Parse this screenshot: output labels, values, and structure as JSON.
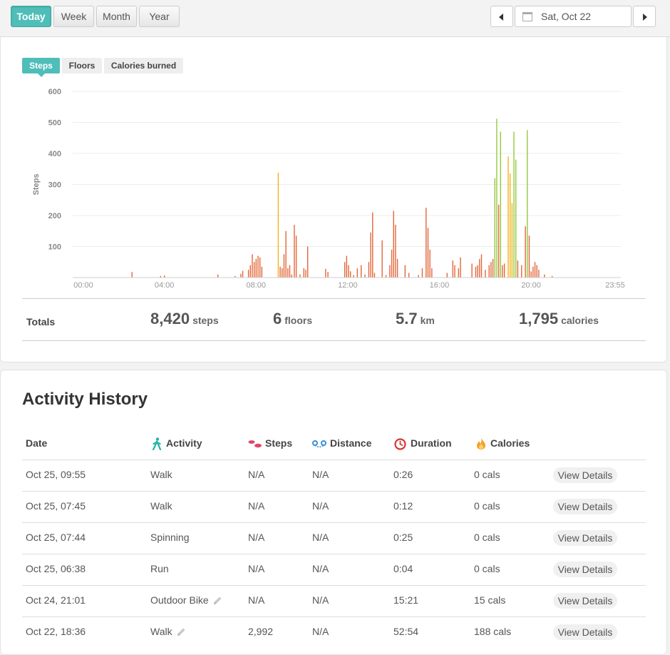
{
  "range_tabs": [
    {
      "label": "Today",
      "active": true
    },
    {
      "label": "Week",
      "active": false
    },
    {
      "label": "Month",
      "active": false
    },
    {
      "label": "Year",
      "active": false
    }
  ],
  "date_nav": {
    "date": "Sat, Oct 22",
    "calendar_icon": "calendar-icon",
    "prev_icon": "caret-left-icon",
    "next_icon": "caret-right-icon"
  },
  "metric_tabs": [
    {
      "label": "Steps",
      "active": true
    },
    {
      "label": "Floors",
      "active": false
    },
    {
      "label": "Calories burned",
      "active": false
    }
  ],
  "chart_data": {
    "type": "bar",
    "ylabel": "Steps",
    "yticks": [
      "100",
      "200",
      "300",
      "400",
      "500",
      "600"
    ],
    "ylim": [
      0,
      600
    ],
    "xticks": [
      "00:00",
      "04:00",
      "08:00",
      "12:00",
      "16:00",
      "20:00",
      "23:55"
    ],
    "x_unit": "minutes since 00:00",
    "xlim": [
      0,
      1435
    ],
    "grid": true,
    "colors": {
      "sedentary": "#e2673a",
      "light": "#f3b31a",
      "active": "#95c83d"
    },
    "bars": [
      {
        "t": 155,
        "v": 18,
        "level": "sedentary"
      },
      {
        "t": 230,
        "v": 5,
        "level": "sedentary"
      },
      {
        "t": 240,
        "v": 7,
        "level": "sedentary"
      },
      {
        "t": 380,
        "v": 10,
        "level": "sedentary"
      },
      {
        "t": 425,
        "v": 5,
        "level": "sedentary"
      },
      {
        "t": 440,
        "v": 12,
        "level": "sedentary"
      },
      {
        "t": 445,
        "v": 22,
        "level": "sedentary"
      },
      {
        "t": 460,
        "v": 25,
        "level": "sedentary"
      },
      {
        "t": 465,
        "v": 40,
        "level": "sedentary"
      },
      {
        "t": 470,
        "v": 75,
        "level": "sedentary"
      },
      {
        "t": 475,
        "v": 50,
        "level": "sedentary"
      },
      {
        "t": 480,
        "v": 60,
        "level": "sedentary"
      },
      {
        "t": 485,
        "v": 70,
        "level": "sedentary"
      },
      {
        "t": 490,
        "v": 65,
        "level": "sedentary"
      },
      {
        "t": 495,
        "v": 35,
        "level": "sedentary"
      },
      {
        "t": 538,
        "v": 338,
        "level": "light"
      },
      {
        "t": 543,
        "v": 35,
        "level": "sedentary"
      },
      {
        "t": 548,
        "v": 30,
        "level": "sedentary"
      },
      {
        "t": 553,
        "v": 75,
        "level": "sedentary"
      },
      {
        "t": 558,
        "v": 150,
        "level": "sedentary"
      },
      {
        "t": 563,
        "v": 30,
        "level": "sedentary"
      },
      {
        "t": 568,
        "v": 40,
        "level": "sedentary"
      },
      {
        "t": 573,
        "v": 10,
        "level": "sedentary"
      },
      {
        "t": 580,
        "v": 170,
        "level": "sedentary"
      },
      {
        "t": 585,
        "v": 135,
        "level": "sedentary"
      },
      {
        "t": 595,
        "v": 10,
        "level": "sedentary"
      },
      {
        "t": 605,
        "v": 30,
        "level": "sedentary"
      },
      {
        "t": 615,
        "v": 100,
        "level": "sedentary"
      },
      {
        "t": 610,
        "v": 25,
        "level": "sedentary"
      },
      {
        "t": 662,
        "v": 28,
        "level": "sedentary"
      },
      {
        "t": 668,
        "v": 18,
        "level": "sedentary"
      },
      {
        "t": 712,
        "v": 50,
        "level": "sedentary"
      },
      {
        "t": 717,
        "v": 70,
        "level": "sedentary"
      },
      {
        "t": 722,
        "v": 40,
        "level": "sedentary"
      },
      {
        "t": 727,
        "v": 20,
        "level": "sedentary"
      },
      {
        "t": 735,
        "v": 8,
        "level": "sedentary"
      },
      {
        "t": 745,
        "v": 30,
        "level": "sedentary"
      },
      {
        "t": 755,
        "v": 40,
        "level": "sedentary"
      },
      {
        "t": 765,
        "v": 10,
        "level": "sedentary"
      },
      {
        "t": 775,
        "v": 50,
        "level": "sedentary"
      },
      {
        "t": 780,
        "v": 145,
        "level": "sedentary"
      },
      {
        "t": 785,
        "v": 210,
        "level": "sedentary"
      },
      {
        "t": 790,
        "v": 15,
        "level": "sedentary"
      },
      {
        "t": 810,
        "v": 120,
        "level": "sedentary"
      },
      {
        "t": 820,
        "v": 8,
        "level": "sedentary"
      },
      {
        "t": 830,
        "v": 40,
        "level": "sedentary"
      },
      {
        "t": 835,
        "v": 90,
        "level": "sedentary"
      },
      {
        "t": 840,
        "v": 215,
        "level": "sedentary"
      },
      {
        "t": 845,
        "v": 170,
        "level": "sedentary"
      },
      {
        "t": 850,
        "v": 60,
        "level": "sedentary"
      },
      {
        "t": 870,
        "v": 40,
        "level": "sedentary"
      },
      {
        "t": 880,
        "v": 15,
        "level": "sedentary"
      },
      {
        "t": 905,
        "v": 8,
        "level": "sedentary"
      },
      {
        "t": 915,
        "v": 30,
        "level": "sedentary"
      },
      {
        "t": 925,
        "v": 225,
        "level": "sedentary"
      },
      {
        "t": 930,
        "v": 160,
        "level": "sedentary"
      },
      {
        "t": 935,
        "v": 90,
        "level": "sedentary"
      },
      {
        "t": 940,
        "v": 30,
        "level": "sedentary"
      },
      {
        "t": 980,
        "v": 15,
        "level": "sedentary"
      },
      {
        "t": 995,
        "v": 55,
        "level": "sedentary"
      },
      {
        "t": 1000,
        "v": 40,
        "level": "sedentary"
      },
      {
        "t": 1010,
        "v": 30,
        "level": "sedentary"
      },
      {
        "t": 1015,
        "v": 65,
        "level": "sedentary"
      },
      {
        "t": 1045,
        "v": 45,
        "level": "sedentary"
      },
      {
        "t": 1055,
        "v": 35,
        "level": "sedentary"
      },
      {
        "t": 1060,
        "v": 40,
        "level": "sedentary"
      },
      {
        "t": 1065,
        "v": 60,
        "level": "sedentary"
      },
      {
        "t": 1070,
        "v": 75,
        "level": "sedentary"
      },
      {
        "t": 1080,
        "v": 25,
        "level": "sedentary"
      },
      {
        "t": 1090,
        "v": 40,
        "level": "sedentary"
      },
      {
        "t": 1095,
        "v": 50,
        "level": "sedentary"
      },
      {
        "t": 1100,
        "v": 60,
        "level": "sedentary"
      },
      {
        "t": 1105,
        "v": 320,
        "level": "active"
      },
      {
        "t": 1110,
        "v": 512,
        "level": "active"
      },
      {
        "t": 1115,
        "v": 235,
        "level": "sedentary"
      },
      {
        "t": 1120,
        "v": 470,
        "level": "active"
      },
      {
        "t": 1125,
        "v": 40,
        "level": "sedentary"
      },
      {
        "t": 1130,
        "v": 45,
        "level": "sedentary"
      },
      {
        "t": 1140,
        "v": 390,
        "level": "light"
      },
      {
        "t": 1145,
        "v": 335,
        "level": "light"
      },
      {
        "t": 1150,
        "v": 240,
        "level": "light"
      },
      {
        "t": 1155,
        "v": 470,
        "level": "active"
      },
      {
        "t": 1160,
        "v": 380,
        "level": "active"
      },
      {
        "t": 1165,
        "v": 55,
        "level": "sedentary"
      },
      {
        "t": 1175,
        "v": 40,
        "level": "sedentary"
      },
      {
        "t": 1185,
        "v": 165,
        "level": "sedentary"
      },
      {
        "t": 1190,
        "v": 475,
        "level": "active"
      },
      {
        "t": 1195,
        "v": 135,
        "level": "sedentary"
      },
      {
        "t": 1200,
        "v": 20,
        "level": "sedentary"
      },
      {
        "t": 1205,
        "v": 35,
        "level": "sedentary"
      },
      {
        "t": 1210,
        "v": 50,
        "level": "sedentary"
      },
      {
        "t": 1215,
        "v": 40,
        "level": "sedentary"
      },
      {
        "t": 1220,
        "v": 25,
        "level": "sedentary"
      },
      {
        "t": 1235,
        "v": 10,
        "level": "sedentary"
      },
      {
        "t": 1255,
        "v": 5,
        "level": "sedentary"
      }
    ]
  },
  "totals": {
    "label": "Totals",
    "items": [
      {
        "value": "8,420",
        "unit": "steps"
      },
      {
        "value": "6",
        "unit": "floors"
      },
      {
        "value": "5.7",
        "unit": "km"
      },
      {
        "value": "1,795",
        "unit": "calories"
      }
    ]
  },
  "history": {
    "title": "Activity History",
    "columns": [
      {
        "label": "Date",
        "icon": ""
      },
      {
        "label": "Activity",
        "icon": "walking-person-icon"
      },
      {
        "label": "Steps",
        "icon": "footprints-icon"
      },
      {
        "label": "Distance",
        "icon": "route-icon"
      },
      {
        "label": "Duration",
        "icon": "clock-icon"
      },
      {
        "label": "Calories",
        "icon": "flame-icon"
      }
    ],
    "colors": {
      "activity_icon": "#23b2a8",
      "steps_icon": "#e0466e",
      "distance_icon": "#3b8fd4",
      "duration_icon": "#d9362f",
      "calories_icon": "#f5a12a"
    },
    "details_label": "View Details",
    "rows": [
      {
        "date": "Oct 25, 09:55",
        "activity": "Walk",
        "editable": false,
        "steps": "N/A",
        "distance": "N/A",
        "duration": "0:26",
        "calories": "0 cals"
      },
      {
        "date": "Oct 25, 07:45",
        "activity": "Walk",
        "editable": false,
        "steps": "N/A",
        "distance": "N/A",
        "duration": "0:12",
        "calories": "0 cals"
      },
      {
        "date": "Oct 25, 07:44",
        "activity": "Spinning",
        "editable": false,
        "steps": "N/A",
        "distance": "N/A",
        "duration": "0:25",
        "calories": "0 cals"
      },
      {
        "date": "Oct 25, 06:38",
        "activity": "Run",
        "editable": false,
        "steps": "N/A",
        "distance": "N/A",
        "duration": "0:04",
        "calories": "0 cals"
      },
      {
        "date": "Oct 24, 21:01",
        "activity": "Outdoor Bike",
        "editable": true,
        "steps": "N/A",
        "distance": "N/A",
        "duration": "15:21",
        "calories": "15 cals"
      },
      {
        "date": "Oct 22, 18:36",
        "activity": "Walk",
        "editable": true,
        "steps": "2,992",
        "distance": "N/A",
        "duration": "52:54",
        "calories": "188 cals"
      }
    ]
  }
}
